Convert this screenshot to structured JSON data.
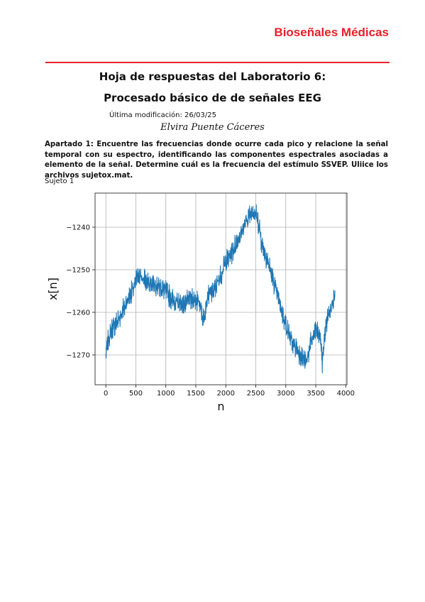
{
  "header": {
    "title": "Bioseñales Médicas",
    "accent_color": "#e8202a"
  },
  "document": {
    "title_line1": "Hoja de respuestas del Laboratorio 6:",
    "title_line2": "Procesado básico de de señales EEG",
    "modified": "Última modificación: 26/03/25",
    "author": "Elvira Puente Cáceres",
    "question": "Apartado 1: Encuentre las frecuencias donde ocurre cada pico y relacione la señal temporal con su espectro, identificando las componentes espectrales asociadas a elemento de la señal. Determine cuál es la frecuencia del estímulo SSVEP. Uliice los archivos sujetox.mat.",
    "subject_label": "Sujeto 1"
  },
  "chart_data": {
    "type": "line",
    "xlabel": "n",
    "ylabel": "x[n]",
    "xlim": [
      -180,
      4020
    ],
    "ylim": [
      -1277,
      -1232
    ],
    "x_ticks": [
      0,
      500,
      1000,
      1500,
      2000,
      2500,
      3000,
      3500,
      4000
    ],
    "y_ticks": [
      -1240,
      -1250,
      -1260,
      -1270
    ],
    "x_tick_labels": [
      "0",
      "500",
      "1000",
      "1500",
      "2000",
      "2500",
      "3000",
      "3500",
      "4000"
    ],
    "y_tick_labels": [
      "−1240",
      "−1250",
      "−1260",
      "−1270"
    ],
    "grid": true,
    "line_color": "#1f77b4",
    "series": [
      {
        "x": [
          0,
          30,
          100,
          200,
          300,
          400,
          480,
          530,
          600,
          700,
          800,
          900,
          1000,
          1100,
          1200,
          1300,
          1400,
          1500,
          1580,
          1620,
          1700,
          1800,
          1900,
          2000,
          2100,
          2200,
          2300,
          2400,
          2450,
          2500,
          2560,
          2600,
          2700,
          2800,
          2900,
          3000,
          3100,
          3200,
          3300,
          3340,
          3400,
          3450,
          3500,
          3580,
          3610,
          3650,
          3700,
          3760,
          3820
        ],
        "values": [
          -1270,
          -1267,
          -1264,
          -1262,
          -1259,
          -1256,
          -1254,
          -1251,
          -1252,
          -1253,
          -1253,
          -1254,
          -1255,
          -1257,
          -1258,
          -1258,
          -1257,
          -1257,
          -1258,
          -1262,
          -1256,
          -1255,
          -1252,
          -1248,
          -1246,
          -1243,
          -1240,
          -1237,
          -1236,
          -1237,
          -1240,
          -1244,
          -1248,
          -1253,
          -1258,
          -1263,
          -1267,
          -1269,
          -1271,
          -1272,
          -1268,
          -1266,
          -1264,
          -1266,
          -1272,
          -1265,
          -1261,
          -1258,
          -1256
        ]
      }
    ]
  }
}
